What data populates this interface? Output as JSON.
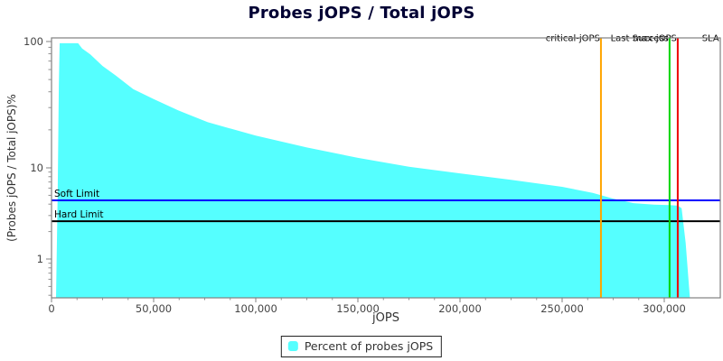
{
  "chart_data": {
    "type": "area",
    "title": "Probes jOPS / Total jOPS",
    "xlabel": "jOPS",
    "ylabel": "(Probes jOPS / Total jOPS)%",
    "x_scale": "linear",
    "y_scale": "log",
    "xlim": [
      0,
      327400
    ],
    "ylim": [
      0.38,
      107
    ],
    "x_ticks": [
      0,
      50000,
      100000,
      150000,
      200000,
      250000,
      300000
    ],
    "x_tick_labels": [
      "0",
      "50,000",
      "100,000",
      "150,000",
      "200,000",
      "250,000",
      "300,000"
    ],
    "y_ticks": [
      100,
      10,
      1
    ],
    "y_tick_labels": [
      "100",
      "10",
      "1"
    ],
    "grid": "off",
    "legend_position": "bottom-center",
    "series": [
      {
        "name": "Percent of probes jOPS",
        "color": "#55FFFF",
        "points": [
          [
            2200,
            0.38
          ],
          [
            3000,
            5
          ],
          [
            3600,
            45
          ],
          [
            4000,
            97
          ],
          [
            13000,
            97
          ],
          [
            15000,
            88
          ],
          [
            19000,
            79
          ],
          [
            25000,
            64
          ],
          [
            32000,
            53
          ],
          [
            40000,
            42
          ],
          [
            50000,
            35
          ],
          [
            62000,
            28.5
          ],
          [
            76500,
            23
          ],
          [
            100000,
            18
          ],
          [
            125000,
            14.5
          ],
          [
            150000,
            12
          ],
          [
            175000,
            10.2
          ],
          [
            200000,
            8.7
          ],
          [
            225000,
            7.4
          ],
          [
            250000,
            6.2
          ],
          [
            265000,
            5.3
          ],
          [
            275000,
            4.6
          ],
          [
            285000,
            4.1
          ],
          [
            295000,
            3.95
          ],
          [
            302600,
            3.9
          ],
          [
            306600,
            3.85
          ],
          [
            308500,
            3.6
          ],
          [
            310500,
            1.5
          ],
          [
            312500,
            0.38
          ]
        ]
      }
    ],
    "hlines": [
      {
        "label": "Soft Limit",
        "value": 4.4,
        "color": "#0000FF"
      },
      {
        "label": "Hard Limit",
        "value": 2.6,
        "color": "#000000"
      }
    ],
    "vlines": [
      {
        "label": "critical-jOPS",
        "value": 269000,
        "color": "#FFA500",
        "line": true
      },
      {
        "label": "Last Success",
        "value": 302600,
        "color": "#00D400",
        "line": true
      },
      {
        "label": "max-jOPS",
        "value": 306600,
        "color": "#EE0000",
        "line": true
      },
      {
        "label": "SLA",
        "value": 327300,
        "color": "#000000",
        "line": false
      }
    ]
  }
}
